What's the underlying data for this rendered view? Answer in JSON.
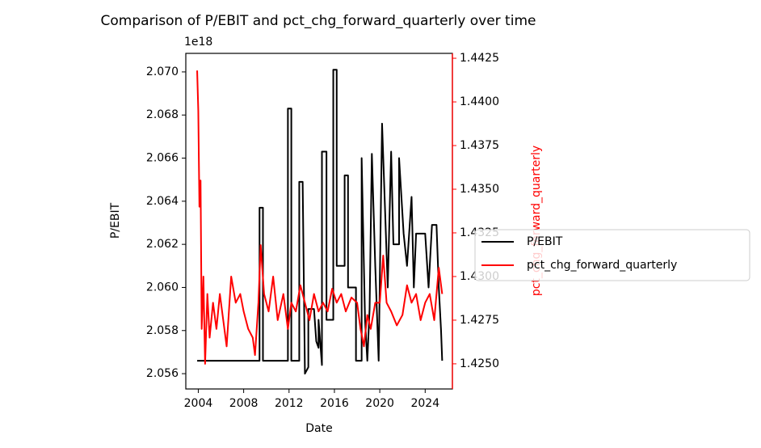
{
  "chart_data": {
    "type": "line",
    "title": "Comparison of P/EBIT and pct_chg_forward_quarterly over time",
    "x_label": "Date",
    "y_label": "P/EBIT",
    "y2_label": "pct_chg_forward_quarterly",
    "y_offset_label": "1e18",
    "xlim": [
      2002.9,
      2026.4
    ],
    "xticks": [
      2004,
      2008,
      2012,
      2016,
      2020,
      2024
    ],
    "ylim": [
      2.05529,
      2.07086
    ],
    "yticks": [
      2.056,
      2.058,
      {
        "value": 2.06,
        "label": "2.060"
      },
      2.062,
      2.064,
      2.066,
      2.068,
      {
        "value": 2.07,
        "label": "2.070"
      }
    ],
    "y2lim": [
      1.42356,
      1.44278
    ],
    "y2ticks": [
      {
        "value": 1.425,
        "label": "1.4250"
      },
      1.4275,
      {
        "value": 1.43,
        "label": "1.4300"
      },
      1.4325,
      {
        "value": 1.435,
        "label": "1.4350"
      },
      1.4375,
      {
        "value": 1.44,
        "label": "1.4400"
      },
      1.4425
    ],
    "y2_color": "#ff0000",
    "legend": "outside-right",
    "series": [
      {
        "name": "P/EBIT",
        "color": "#000000",
        "x": [
          2003.9,
          2009.4,
          2009.4,
          2009.7,
          2009.7,
          2011.9,
          2011.9,
          2012.2,
          2012.2,
          2012.9,
          2012.9,
          2013.2,
          2013.4,
          2013.7,
          2013.7,
          2014.2,
          2014.4,
          2014.6,
          2014.6,
          2014.9,
          2014.9,
          2015.3,
          2015.3,
          2015.9,
          2015.9,
          2016.2,
          2016.2,
          2016.9,
          2016.9,
          2017.2,
          2017.2,
          2017.9,
          2017.9,
          2018.4,
          2018.4,
          2018.7,
          2018.9,
          2019.1,
          2019.3,
          2019.6,
          2019.9,
          2020.2,
          2020.7,
          2021.0,
          2021.2,
          2021.7,
          2021.7,
          2022.1,
          2022.4,
          2022.8,
          2023.0,
          2023.2,
          2024.0,
          2024.3,
          2024.6,
          2025.0,
          2025.2,
          2025.4,
          2025.5
        ],
        "values": [
          2.0566,
          2.0566,
          2.0637,
          2.0637,
          2.0566,
          2.0566,
          2.0683,
          2.0683,
          2.0566,
          2.0566,
          2.0649,
          2.0649,
          2.056,
          2.0563,
          2.059,
          2.059,
          2.0575,
          2.0572,
          2.0585,
          2.0564,
          2.0663,
          2.0663,
          2.0585,
          2.0585,
          2.0701,
          2.0701,
          2.061,
          2.061,
          2.0652,
          2.0652,
          2.06,
          2.06,
          2.0566,
          2.0566,
          2.066,
          2.0585,
          2.0566,
          2.059,
          2.0662,
          2.061,
          2.0566,
          2.0676,
          2.06,
          2.0663,
          2.062,
          2.062,
          2.066,
          2.0625,
          2.061,
          2.0642,
          2.06,
          2.0625,
          2.0625,
          2.06,
          2.0629,
          2.0629,
          2.06,
          2.058,
          2.0566
        ]
      },
      {
        "name": "pct_chg_forward_quarterly",
        "color": "#ff0000",
        "axis": "y2",
        "x": [
          2003.9,
          2004.0,
          2004.1,
          2004.2,
          2004.3,
          2004.45,
          2004.6,
          2004.8,
          2005.0,
          2005.3,
          2005.6,
          2005.9,
          2006.2,
          2006.5,
          2006.9,
          2007.3,
          2007.7,
          2008.0,
          2008.4,
          2008.8,
          2009.0,
          2009.3,
          2009.5,
          2009.8,
          2010.2,
          2010.6,
          2011.0,
          2011.5,
          2011.9,
          2012.2,
          2012.6,
          2013.0,
          2013.4,
          2013.8,
          2014.2,
          2014.6,
          2015.0,
          2015.4,
          2015.8,
          2016.2,
          2016.6,
          2017.0,
          2017.5,
          2018.0,
          2018.3,
          2018.6,
          2018.9,
          2019.2,
          2019.6,
          2020.0,
          2020.3,
          2020.6,
          2021.0,
          2021.5,
          2022.0,
          2022.4,
          2022.8,
          2023.2,
          2023.6,
          2024.0,
          2024.4,
          2024.8,
          2025.2,
          2025.5
        ],
        "values": [
          1.4418,
          1.4395,
          1.434,
          1.4355,
          1.427,
          1.43,
          1.425,
          1.429,
          1.4265,
          1.4285,
          1.427,
          1.429,
          1.4275,
          1.426,
          1.43,
          1.4285,
          1.429,
          1.428,
          1.427,
          1.4265,
          1.4255,
          1.4285,
          1.4318,
          1.429,
          1.428,
          1.43,
          1.4275,
          1.429,
          1.427,
          1.4285,
          1.428,
          1.4295,
          1.4285,
          1.4275,
          1.429,
          1.428,
          1.4285,
          1.428,
          1.4293,
          1.4285,
          1.429,
          1.428,
          1.4288,
          1.4285,
          1.427,
          1.426,
          1.4278,
          1.427,
          1.4285,
          1.4285,
          1.4312,
          1.4285,
          1.428,
          1.4272,
          1.4278,
          1.4295,
          1.4285,
          1.429,
          1.4275,
          1.4285,
          1.429,
          1.4275,
          1.4305,
          1.429
        ]
      }
    ]
  }
}
